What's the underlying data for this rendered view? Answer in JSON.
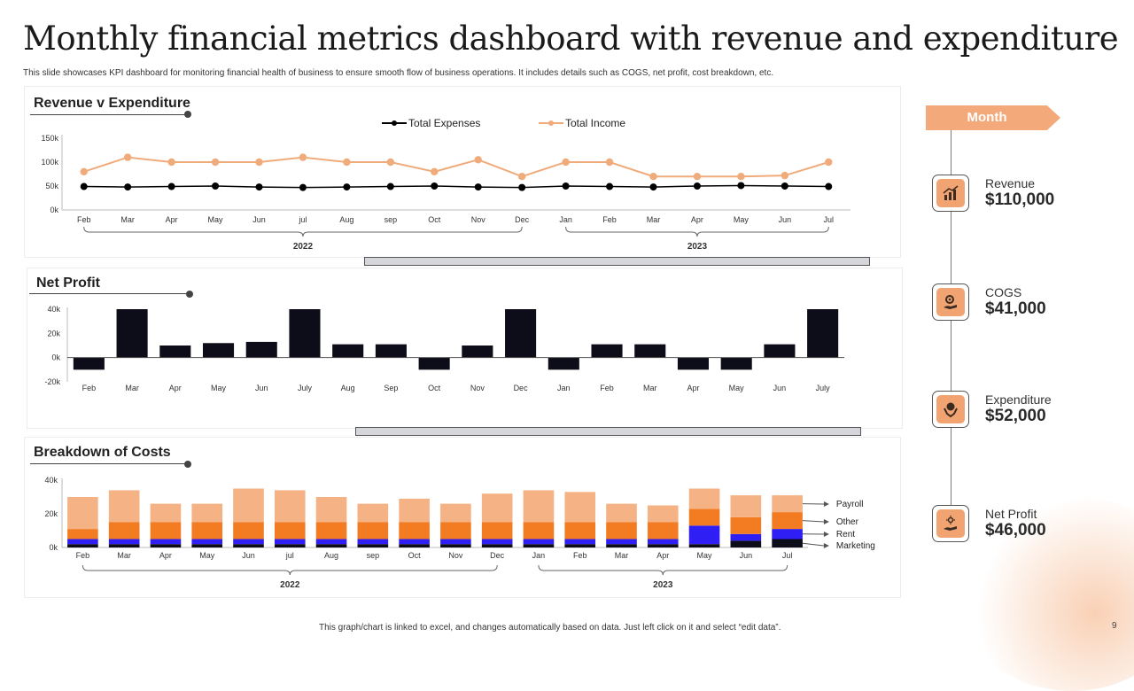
{
  "title": "Monthly financial metrics dashboard with revenue and expenditure",
  "subtitle": "This slide showcases KPI dashboard for monitoring  financial health of business to ensure smooth flow of business operations. It includes details such as COGS,  net profit, cost breakdown, etc.",
  "footer": "This graph/chart is linked to excel, and changes automatically based on data.  Just left click on it and select “edit data”.",
  "page_number": "9",
  "colors": {
    "accent": "#f4a97a",
    "icon_bg": "#f1a372",
    "dark": "#0d0d1a",
    "orange": "#f37c22",
    "light_orange": "#f5b285",
    "blue": "#2f1ff5"
  },
  "panels": {
    "revenue": {
      "title": "Revenue v Expenditure"
    },
    "netprofit": {
      "title": "Net Profit"
    },
    "costs": {
      "title": "Breakdown of Costs"
    }
  },
  "sidebar": {
    "month_label": "Month",
    "kpis": [
      {
        "label": "Revenue",
        "value": "$110,000",
        "icon": "bar-chart-icon"
      },
      {
        "label": "COGS",
        "value": "$41,000",
        "icon": "gear-hand-icon"
      },
      {
        "label": "Expenditure",
        "value": "$52,000",
        "icon": "money-hand-icon"
      },
      {
        "label": "Net Profit",
        "value": "$46,000",
        "icon": "profit-hand-icon"
      }
    ]
  },
  "chart_data": [
    {
      "type": "line",
      "title": "Revenue v Expenditure",
      "categories": [
        "Feb",
        "Mar",
        "Apr",
        "May",
        "Jun",
        "jul",
        "Aug",
        "sep",
        "Oct",
        "Nov",
        "Dec",
        "Jan",
        "Feb",
        "Mar",
        "Apr",
        "May",
        "Jun",
        "Jul"
      ],
      "groups": [
        {
          "label": "2022",
          "from": 0,
          "to": 10
        },
        {
          "label": "2023",
          "from": 11,
          "to": 17
        }
      ],
      "ylim": [
        0,
        150000
      ],
      "yticks": [
        0,
        50000,
        100000,
        150000
      ],
      "ytick_labels": [
        "0k",
        "50k",
        "100k",
        "150k"
      ],
      "series": [
        {
          "name": "Total Expenses",
          "color": "#000000",
          "values": [
            49000,
            48000,
            49000,
            50000,
            48000,
            47000,
            48000,
            49000,
            50000,
            48000,
            47000,
            50000,
            49000,
            48000,
            50000,
            51000,
            50000,
            49000
          ]
        },
        {
          "name": "Total Income",
          "color": "#f0ab7b",
          "values": [
            80000,
            110000,
            100000,
            100000,
            100000,
            110000,
            100000,
            100000,
            80000,
            105000,
            70000,
            100000,
            100000,
            70000,
            70000,
            70000,
            72000,
            100000
          ]
        }
      ],
      "legend": "top-center"
    },
    {
      "type": "bar",
      "title": "Net Profit",
      "categories": [
        "Feb",
        "Mar",
        "Apr",
        "May",
        "Jun",
        "July",
        "Aug",
        "Sep",
        "Oct",
        "Nov",
        "Dec",
        "Jan",
        "Feb",
        "Mar",
        "Apr",
        "May",
        "Jun",
        "July"
      ],
      "ylim": [
        -20000,
        40000
      ],
      "yticks": [
        -20000,
        0,
        20000,
        40000
      ],
      "ytick_labels": [
        "-20k",
        "0k",
        "20k",
        "40k"
      ],
      "values": [
        -10000,
        40000,
        10000,
        12000,
        13000,
        40000,
        11000,
        11000,
        -10000,
        10000,
        40000,
        -10000,
        11000,
        11000,
        -10000,
        -10000,
        11000,
        40000
      ]
    },
    {
      "type": "bar",
      "stacked": true,
      "title": "Breakdown of Costs",
      "categories": [
        "Feb",
        "Mar",
        "Apr",
        "May",
        "Jun",
        "jul",
        "Aug",
        "sep",
        "Oct",
        "Nov",
        "Dec",
        "Jan",
        "Feb",
        "Mar",
        "Apr",
        "May",
        "Jun",
        "Jul"
      ],
      "groups": [
        {
          "label": "2022",
          "from": 0,
          "to": 10
        },
        {
          "label": "2023",
          "from": 11,
          "to": 17
        }
      ],
      "ylim": [
        0,
        40000
      ],
      "yticks": [
        0,
        20000,
        40000
      ],
      "ytick_labels": [
        "0k",
        "20k",
        "40k"
      ],
      "series": [
        {
          "name": "Marketing",
          "color": "#0d0d1a",
          "values": [
            2000,
            2000,
            2000,
            2000,
            2000,
            2000,
            2000,
            2000,
            2000,
            2000,
            2000,
            2000,
            2000,
            2000,
            2000,
            2000,
            4000,
            5000
          ]
        },
        {
          "name": "Rent",
          "color": "#2f1ff5",
          "values": [
            3000,
            3000,
            3000,
            3000,
            3000,
            3000,
            3000,
            3000,
            3000,
            3000,
            3000,
            3000,
            3000,
            3000,
            3000,
            11000,
            4000,
            6000
          ]
        },
        {
          "name": "Other",
          "color": "#f37c22",
          "values": [
            6000,
            10000,
            10000,
            10000,
            10000,
            10000,
            10000,
            10000,
            10000,
            10000,
            10000,
            10000,
            10000,
            10000,
            10000,
            10000,
            10000,
            10000
          ]
        },
        {
          "name": "Payroll",
          "color": "#f5b285",
          "values": [
            19000,
            19000,
            11000,
            11000,
            20000,
            19000,
            15000,
            11000,
            14000,
            11000,
            17000,
            19000,
            18000,
            11000,
            10000,
            12000,
            13000,
            10000
          ]
        }
      ],
      "legend": "right",
      "legend_order": [
        "Payroll",
        "Other",
        "Rent",
        "Marketing"
      ]
    }
  ]
}
